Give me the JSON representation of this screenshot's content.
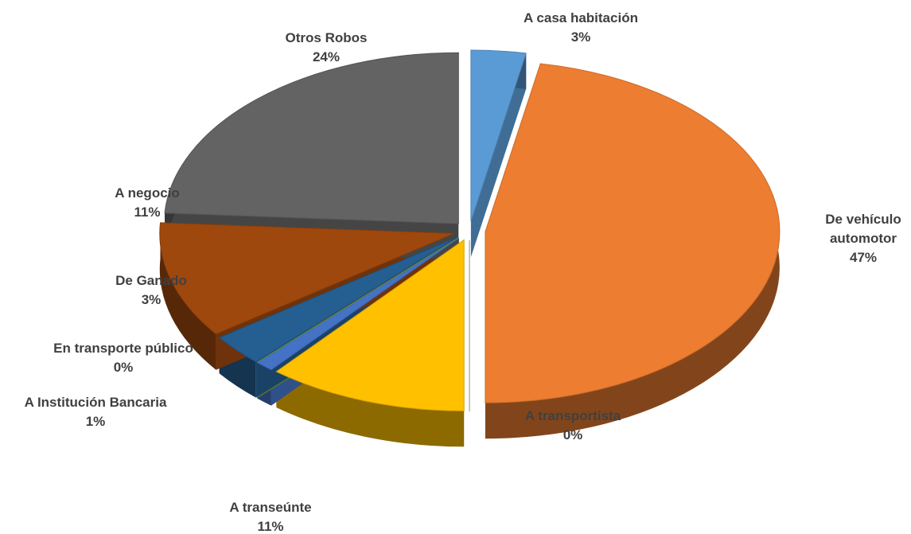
{
  "chart_data": {
    "type": "pie",
    "categories": [
      "A casa habitación",
      "De vehículo automotor",
      "A transportista",
      "A transeúnte",
      "A Institución Bancaria",
      "En transporte público",
      "De Ganado",
      "A negocio",
      "Otros Robos"
    ],
    "values": [
      3,
      47,
      0,
      11,
      1,
      0,
      3,
      11,
      24
    ],
    "value_labels": [
      "3%",
      "47%",
      "0%",
      "11%",
      "1%",
      "0%",
      "3%",
      "11%",
      "24%"
    ],
    "colors": [
      "#5b9bd5",
      "#ed7d31",
      "#a5a5a5",
      "#ffc000",
      "#4472c4",
      "#70ad47",
      "#255e91",
      "#9e480e",
      "#636363"
    ]
  }
}
